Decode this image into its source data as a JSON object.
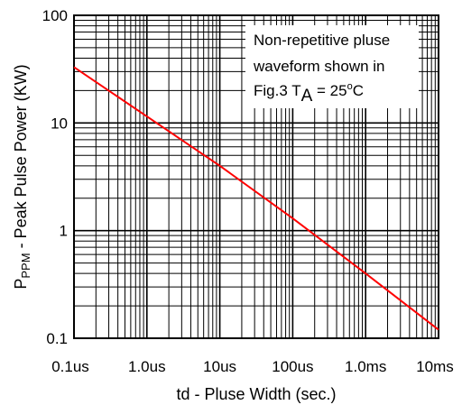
{
  "chart_data": {
    "type": "line",
    "x_scale": "log",
    "y_scale": "log",
    "xlim": [
      "0.1us",
      "10ms"
    ],
    "ylim": [
      0.1,
      100
    ],
    "x_tick_labels": [
      "0.1us",
      "1.0us",
      "10us",
      "100us",
      "1.0ms",
      "10ms"
    ],
    "y_tick_labels": [
      "0.1",
      "1",
      "10",
      "100"
    ],
    "xlabel": "td - Pluse Width (sec.)",
    "ylabel": {
      "prefix": "P",
      "subscript": "PPM",
      "rest": " - Peak Pulse Power (KW)"
    },
    "grid": true,
    "series": [
      {
        "color": "#ff0000",
        "points": [
          {
            "x": "0.1us",
            "y": 33
          },
          {
            "x": "1.0us",
            "y": 11.5
          },
          {
            "x": "10us",
            "y": 4
          },
          {
            "x": "100us",
            "y": 1.3
          },
          {
            "x": "1.0ms",
            "y": 0.4
          },
          {
            "x": "10ms",
            "y": 0.12
          }
        ]
      }
    ],
    "annotation": {
      "line1": "Non-repetitive pluse",
      "line2": "waveform shown in",
      "line3_prefix": "Fig.3 T",
      "line3_subscript": "A",
      "line3_equals": " = 25",
      "line3_degree": "o",
      "line3_unit": "C"
    }
  }
}
